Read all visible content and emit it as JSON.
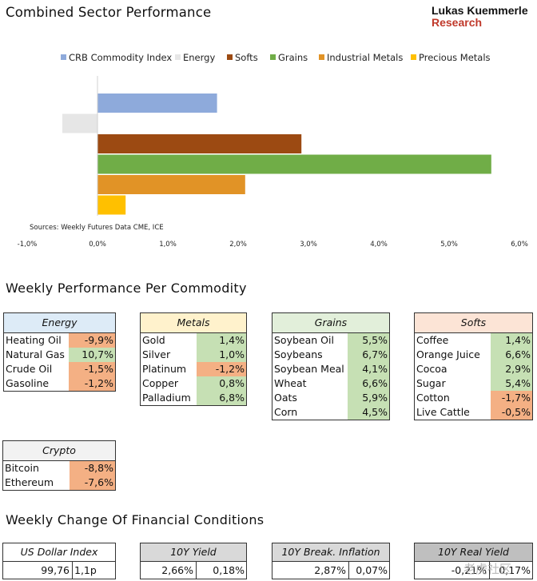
{
  "header": {
    "title": "Combined Sector Performance",
    "logo_line1": "Lukas Kuemmerle",
    "logo_line2": "Research"
  },
  "chart_data": {
    "type": "bar",
    "orientation": "horizontal",
    "title": "Combined Sector Performance",
    "legend_position": "top",
    "series": [
      {
        "name": "CRB Commodity Index",
        "value": 1.7,
        "color": "#8eaadb"
      },
      {
        "name": "Energy",
        "value": -0.5,
        "color": "#e6e6e6"
      },
      {
        "name": "Softs",
        "value": 2.9,
        "color": "#9c4a12"
      },
      {
        "name": "Grains",
        "value": 5.6,
        "color": "#70ad47"
      },
      {
        "name": "Industrial Metals",
        "value": 2.1,
        "color": "#e19326"
      },
      {
        "name": "Precious Metals",
        "value": 0.4,
        "color": "#ffc000"
      }
    ],
    "xlim": [
      -1.0,
      6.0
    ],
    "xticks": [
      "-1,0%",
      "0,0%",
      "1,0%",
      "2,0%",
      "3,0%",
      "4,0%",
      "5,0%",
      "6,0%"
    ],
    "source_note": "Sources: Weekly Futures Data CME, ICE"
  },
  "commodities": {
    "title": "Weekly Performance Per Commodity",
    "energy": {
      "header": "Energy",
      "rows": [
        {
          "name": "Heating Oil",
          "value": "-9,9%"
        },
        {
          "name": "Natural Gas",
          "value": "10,7%"
        },
        {
          "name": "Crude Oil",
          "value": "-1,5%"
        },
        {
          "name": "Gasoline",
          "value": "-1,2%"
        }
      ]
    },
    "metals": {
      "header": "Metals",
      "rows": [
        {
          "name": "Gold",
          "value": "1,4%"
        },
        {
          "name": "Silver",
          "value": "1,0%"
        },
        {
          "name": "Platinum",
          "value": "-1,2%"
        },
        {
          "name": "Copper",
          "value": "0,8%"
        },
        {
          "name": "Palladium",
          "value": "6,8%"
        }
      ]
    },
    "grains": {
      "header": "Grains",
      "rows": [
        {
          "name": "Soybean Oil",
          "value": "5,5%"
        },
        {
          "name": "Soybeans",
          "value": "6,7%"
        },
        {
          "name": "Soybean Meal",
          "value": "4,1%"
        },
        {
          "name": "Wheat",
          "value": "6,6%"
        },
        {
          "name": "Oats",
          "value": "5,9%"
        },
        {
          "name": "Corn",
          "value": "4,5%"
        }
      ]
    },
    "softs": {
      "header": "Softs",
      "rows": [
        {
          "name": "Coffee",
          "value": "1,4%"
        },
        {
          "name": "Orange Juice",
          "value": "6,6%"
        },
        {
          "name": "Cocoa",
          "value": "2,9%"
        },
        {
          "name": "Sugar",
          "value": "5,4%"
        },
        {
          "name": "Cotton",
          "value": "-1,7%"
        },
        {
          "name": "Live Cattle",
          "value": "-0,5%"
        }
      ]
    },
    "crypto": {
      "header": "Crypto",
      "rows": [
        {
          "name": "Bitcoin",
          "value": "-8,8%"
        },
        {
          "name": "Ethereum",
          "value": "-7,6%"
        }
      ]
    }
  },
  "financial": {
    "title": "Weekly Change Of Financial Conditions",
    "usd": {
      "header": "US Dollar Index",
      "level": "99,76",
      "change": "1,1p"
    },
    "yield10": {
      "header": "10Y Yield",
      "level": "2,66%",
      "change": "0,18%"
    },
    "breakeven": {
      "header": "10Y Break. Inflation",
      "level": "2,87%",
      "change": "0,07%"
    },
    "realyield": {
      "header": "10Y Real Yield",
      "level": "-0,21%",
      "change": "0,17%"
    }
  },
  "watermark": "老虎社区",
  "colors": {
    "positive": "#c6e0b4",
    "negative": "#f4b084",
    "energy_header": "#ddebf7",
    "metals_header": "#fff2cc",
    "grains_header": "#e2efda",
    "softs_header": "#fce4d6",
    "crypto_header": "#f2f2f2",
    "fin_header": "#d9d9d9",
    "realyield_header": "#bfbfbf"
  }
}
